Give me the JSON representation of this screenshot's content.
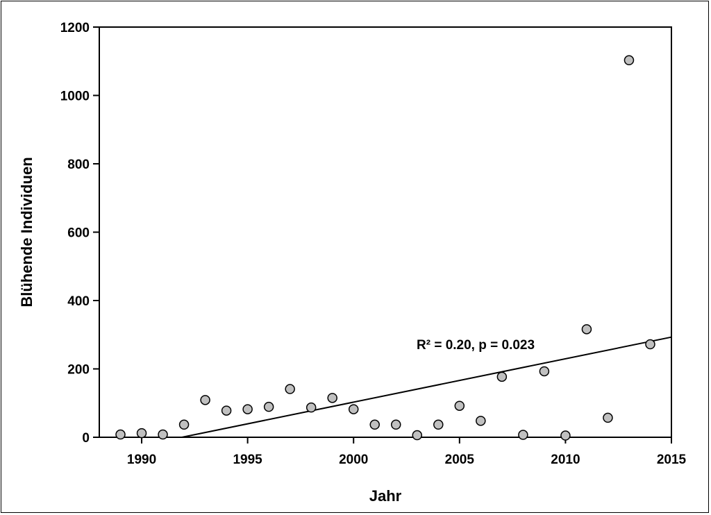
{
  "chart_data": {
    "type": "scatter",
    "xlabel": "Jahr",
    "ylabel": "Blühende Individuen",
    "xlim": [
      1988,
      2015
    ],
    "ylim": [
      0,
      1200
    ],
    "xticks": [
      1990,
      1995,
      2000,
      2005,
      2010,
      2015
    ],
    "yticks": [
      0,
      200,
      400,
      600,
      800,
      1000,
      1200
    ],
    "grid": false,
    "legend": "none",
    "marker_color": "#c0c0c0",
    "points": [
      {
        "x": 1989,
        "y": 8
      },
      {
        "x": 1990,
        "y": 12
      },
      {
        "x": 1991,
        "y": 8
      },
      {
        "x": 1992,
        "y": 37
      },
      {
        "x": 1993,
        "y": 109
      },
      {
        "x": 1994,
        "y": 78
      },
      {
        "x": 1995,
        "y": 82
      },
      {
        "x": 1996,
        "y": 89
      },
      {
        "x": 1997,
        "y": 141
      },
      {
        "x": 1998,
        "y": 87
      },
      {
        "x": 1999,
        "y": 115
      },
      {
        "x": 2000,
        "y": 82
      },
      {
        "x": 2001,
        "y": 37
      },
      {
        "x": 2002,
        "y": 37
      },
      {
        "x": 2003,
        "y": 6
      },
      {
        "x": 2004,
        "y": 37
      },
      {
        "x": 2005,
        "y": 92
      },
      {
        "x": 2006,
        "y": 48
      },
      {
        "x": 2007,
        "y": 177
      },
      {
        "x": 2008,
        "y": 7
      },
      {
        "x": 2009,
        "y": 193
      },
      {
        "x": 2010,
        "y": 5
      },
      {
        "x": 2011,
        "y": 316
      },
      {
        "x": 2012,
        "y": 57
      },
      {
        "x": 2013,
        "y": 1103
      },
      {
        "x": 2014,
        "y": 272
      }
    ],
    "trendline": {
      "x": [
        1991.9,
        2015
      ],
      "y": [
        0,
        293
      ]
    },
    "annotation": "R² = 0.20, p = 0.023"
  }
}
